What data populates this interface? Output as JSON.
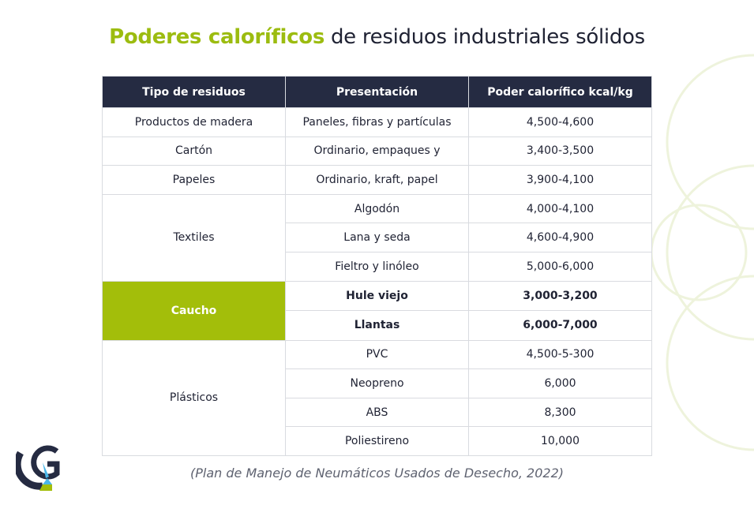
{
  "title": {
    "highlight": "Poderes caloríficos",
    "rest": " de residuos industriales sólidos"
  },
  "table": {
    "headers": [
      "Tipo de residuos",
      "Presentación",
      "Poder calorífico kcal/kg"
    ],
    "groups": [
      {
        "type": "Productos de madera",
        "rows": [
          [
            "Paneles, fibras y partículas",
            "4,500-4,600"
          ]
        ]
      },
      {
        "type": "Cartón",
        "rows": [
          [
            "Ordinario, empaques y",
            "3,400-3,500"
          ]
        ]
      },
      {
        "type": "Papeles",
        "rows": [
          [
            "Ordinario, kraft, papel",
            "3,900-4,100"
          ]
        ]
      },
      {
        "type": "Textiles",
        "rows": [
          [
            "Algodón",
            "4,000-4,100"
          ],
          [
            "Lana y seda",
            "4,600-4,900"
          ],
          [
            "Fieltro y linóleo",
            "5,000-6,000"
          ]
        ]
      },
      {
        "type": "Caucho",
        "highlighted": true,
        "rows": [
          [
            "Hule viejo",
            "3,000-3,200"
          ],
          [
            "Llantas",
            "6,000-7,000"
          ]
        ]
      },
      {
        "type": "Plásticos",
        "rows": [
          [
            "PVC",
            "4,500-5-300"
          ],
          [
            "Neopreno",
            "6,000"
          ],
          [
            "ABS",
            "8,300"
          ],
          [
            "Poliestireno",
            "10,000"
          ]
        ]
      }
    ]
  },
  "caption": "(Plan de Manejo de Neumáticos Usados de Desecho, 2022)",
  "colors": {
    "accent": "#a3be0a",
    "header": "#252b42"
  }
}
